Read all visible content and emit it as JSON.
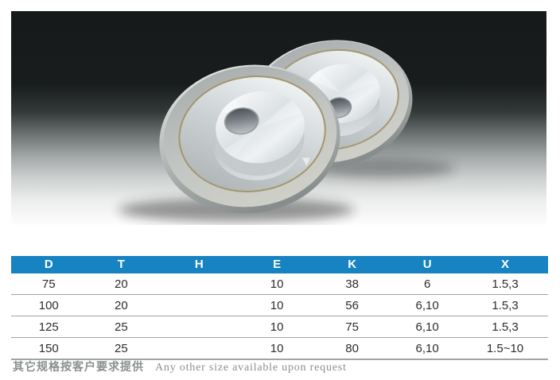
{
  "photo": {
    "description": "Two bowl-shaped diamond cup grinding wheels with aluminium bodies and grey abrasive rims",
    "bg_top_color": "#161a1a",
    "bg_bottom_color": "#fdfdfd"
  },
  "table": {
    "header_bg": "#1783c3",
    "header_text_color": "#ffffff",
    "row_text_color": "#2d2d2d",
    "separator_color": "#a3a3a3",
    "headers": [
      "D",
      "T",
      "H",
      "E",
      "K",
      "U",
      "X"
    ],
    "rows": [
      [
        "75",
        "20",
        "",
        "10",
        "38",
        "6",
        "1.5,3"
      ],
      [
        "100",
        "20",
        "",
        "10",
        "56",
        "6,10",
        "1.5,3"
      ],
      [
        "125",
        "25",
        "",
        "10",
        "75",
        "6,10",
        "1.5,3"
      ],
      [
        "150",
        "25",
        "",
        "10",
        "80",
        "6,10",
        "1.5~10"
      ]
    ]
  },
  "footer": {
    "note_cn": "其它规格按客户要求提供",
    "note_en": "Any other size available upon request",
    "text_color": "#8b8f8f"
  }
}
